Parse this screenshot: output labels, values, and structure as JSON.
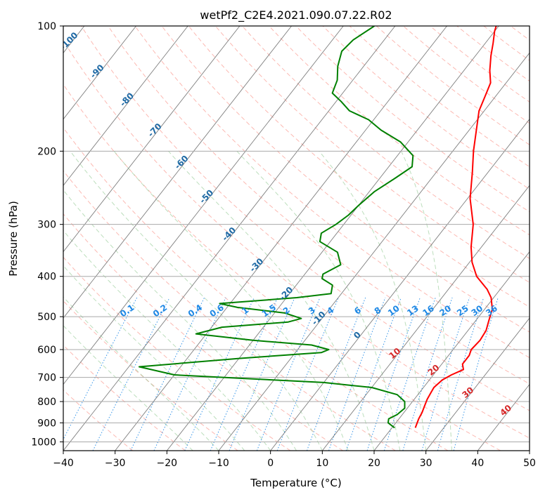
{
  "chart_data": {
    "type": "line",
    "title": "wetPf2_C2E4.2021.090.07.22.R02",
    "xlabel": "Temperature (°C)",
    "ylabel": "Pressure (hPa)",
    "xlim": [
      -40,
      50
    ],
    "ylim": [
      1050,
      100
    ],
    "y_scale": "log",
    "grid": true,
    "x_ticks": [
      "−40",
      "−30",
      "−20",
      "−10",
      "0",
      "10",
      "20",
      "30",
      "40",
      "50"
    ],
    "y_ticks": [
      "100",
      "200",
      "300",
      "400",
      "500",
      "600",
      "700",
      "800",
      "900",
      "1000"
    ],
    "x_tick_values": [
      -40,
      -30,
      -20,
      -10,
      0,
      10,
      20,
      30,
      40,
      50
    ],
    "y_tick_values": [
      100,
      200,
      300,
      400,
      500,
      600,
      700,
      800,
      900,
      1000
    ],
    "series": [
      {
        "color": "#ff0000",
        "kind": "temperature",
        "points": [
          [
            24.5,
            925
          ],
          [
            23.8,
            880
          ],
          [
            23.5,
            850
          ],
          [
            23.0,
            820
          ],
          [
            22.5,
            790
          ],
          [
            22.2,
            760
          ],
          [
            22.0,
            740
          ],
          [
            22.5,
            710
          ],
          [
            23.5,
            690
          ],
          [
            25.0,
            670
          ],
          [
            24.0,
            650
          ],
          [
            24.0,
            620
          ],
          [
            23.5,
            600
          ],
          [
            23.8,
            570
          ],
          [
            23.5,
            540
          ],
          [
            22.5,
            510
          ],
          [
            21.5,
            480
          ],
          [
            19.5,
            450
          ],
          [
            17.5,
            430
          ],
          [
            13.5,
            400
          ],
          [
            10.5,
            370
          ],
          [
            8.0,
            340
          ],
          [
            5.0,
            300
          ],
          [
            0.5,
            260
          ],
          [
            -3.0,
            225
          ],
          [
            -6.0,
            200
          ],
          [
            -9.0,
            175
          ],
          [
            -11.0,
            160
          ],
          [
            -12.0,
            148
          ],
          [
            -13.0,
            137
          ],
          [
            -15.0,
            128
          ],
          [
            -17.0,
            118
          ],
          [
            -18.5,
            110
          ],
          [
            -20.0,
            103
          ],
          [
            -20.5,
            100
          ]
        ]
      },
      {
        "color": "#008000",
        "kind": "dewpoint",
        "points": [
          [
            20.5,
            925
          ],
          [
            18.5,
            900
          ],
          [
            18.0,
            880
          ],
          [
            19.0,
            860
          ],
          [
            19.5,
            830
          ],
          [
            18.5,
            800
          ],
          [
            16.0,
            770
          ],
          [
            10.0,
            740
          ],
          [
            0.0,
            720
          ],
          [
            -15.0,
            705
          ],
          [
            -30.0,
            690
          ],
          [
            -38.0,
            660
          ],
          [
            -20.0,
            630
          ],
          [
            -5.0,
            610
          ],
          [
            -4.0,
            600
          ],
          [
            -8.0,
            585
          ],
          [
            -20.0,
            570
          ],
          [
            -32.0,
            550
          ],
          [
            -28.0,
            530
          ],
          [
            -16.0,
            515
          ],
          [
            -14.0,
            505
          ],
          [
            -18.0,
            490
          ],
          [
            -28.0,
            475
          ],
          [
            -32.0,
            465
          ],
          [
            -18.0,
            450
          ],
          [
            -12.0,
            440
          ],
          [
            -13.0,
            420
          ],
          [
            -16.0,
            405
          ],
          [
            -16.5,
            395
          ],
          [
            -14.5,
            375
          ],
          [
            -17.0,
            350
          ],
          [
            -22.0,
            330
          ],
          [
            -23.0,
            315
          ],
          [
            -21.5,
            300
          ],
          [
            -20.5,
            285
          ],
          [
            -20.0,
            270
          ],
          [
            -19.0,
            250
          ],
          [
            -17.0,
            232
          ],
          [
            -15.5,
            218
          ],
          [
            -17.0,
            205
          ],
          [
            -21.5,
            190
          ],
          [
            -27.0,
            178
          ],
          [
            -31.0,
            168
          ],
          [
            -36.0,
            160
          ],
          [
            -39.0,
            152
          ],
          [
            -42.0,
            145
          ],
          [
            -43.0,
            135
          ],
          [
            -45.0,
            125
          ],
          [
            -46.5,
            115
          ],
          [
            -46.0,
            108
          ],
          [
            -44.0,
            100
          ]
        ]
      }
    ],
    "dry_adiabat_labels": [
      "-100",
      "-90",
      "-80",
      "-70",
      "-60",
      "-50",
      "-40",
      "-30",
      "-20",
      "-10",
      "0"
    ],
    "moist_adiabat_labels": [
      "10",
      "20",
      "30",
      "40"
    ],
    "mixing_ratio_labels": [
      "0.1",
      "0.2",
      "0.4",
      "0.6",
      "1",
      "1.5",
      "2",
      "3",
      "4",
      "6",
      "8",
      "10",
      "13",
      "16",
      "20",
      "25",
      "30",
      "36"
    ],
    "colors": {
      "temperature": "#ff0000",
      "dewpoint": "#008000",
      "isotherm": "#7f7f7f",
      "isobar": "#a9a9a9",
      "dry_adiabat": "#fa8072",
      "moist_adiabat": "#90c890",
      "mixing_ratio": "#1e88e5",
      "dry_label": "#1f6aa5",
      "moist_label": "#d62728"
    }
  }
}
